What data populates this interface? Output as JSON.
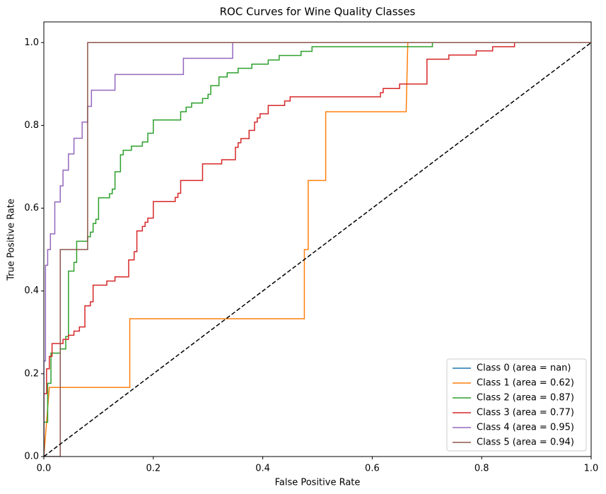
{
  "chart_data": {
    "type": "line",
    "title": "ROC Curves for Wine Quality Classes",
    "x_label": "False Positive Rate",
    "y_label": "True Positive Rate",
    "xlim": [
      0,
      1
    ],
    "ylim": [
      0,
      1.05
    ],
    "xticks": [
      {
        "value": 0,
        "label": "0.0"
      },
      0.2,
      0.4,
      0.6,
      0.8,
      {
        "value": 1,
        "label": "1.0"
      }
    ],
    "yticks": [
      {
        "value": 0,
        "label": "0.0"
      },
      0.2,
      0.4,
      0.6,
      0.8,
      {
        "value": 1,
        "label": "1.0"
      }
    ],
    "grid": false,
    "legend": "lower right",
    "reference_line": {
      "x": [
        0,
        1
      ],
      "values": [
        0,
        1
      ],
      "color": "#000000",
      "dashed": true
    },
    "series": [
      {
        "name": "Class 0 (area = nan)",
        "color": "#1f77b4",
        "x": [],
        "values": []
      },
      {
        "name": "Class 1 (area = 0.62)",
        "color": "#ff7f0e",
        "x": [
          0,
          0.01,
          0.157,
          0.157,
          0.476,
          0.476,
          0.483,
          0.483,
          0.515,
          0.515,
          0.662,
          0.665,
          1
        ],
        "values": [
          0,
          0.167,
          0.167,
          0.333,
          0.333,
          0.5,
          0.5,
          0.667,
          0.667,
          0.833,
          0.833,
          1,
          1
        ]
      },
      {
        "name": "Class 2 (area = 0.87)",
        "color": "#2ca02c",
        "x": [
          0,
          0,
          0.007,
          0.007,
          0.013,
          0.013,
          0.03,
          0.03,
          0.04,
          0.04,
          0.045,
          0.045,
          0.055,
          0.055,
          0.06,
          0.06,
          0.08,
          0.08,
          0.085,
          0.085,
          0.09,
          0.09,
          0.095,
          0.095,
          0.1,
          0.1,
          0.12,
          0.12,
          0.125,
          0.125,
          0.13,
          0.13,
          0.14,
          0.14,
          0.145,
          0.145,
          0.16,
          0.16,
          0.18,
          0.18,
          0.19,
          0.19,
          0.2,
          0.2,
          0.25,
          0.25,
          0.26,
          0.26,
          0.27,
          0.27,
          0.29,
          0.29,
          0.3,
          0.3,
          0.305,
          0.305,
          0.32,
          0.32,
          0.335,
          0.335,
          0.355,
          0.355,
          0.38,
          0.38,
          0.41,
          0.41,
          0.43,
          0.43,
          0.47,
          0.47,
          0.49,
          0.49,
          0.71,
          0.71,
          1
        ],
        "values": [
          0,
          0.083,
          0.083,
          0.177,
          0.177,
          0.25,
          0.25,
          0.26,
          0.26,
          0.29,
          0.29,
          0.448,
          0.448,
          0.469,
          0.469,
          0.52,
          0.52,
          0.531,
          0.531,
          0.542,
          0.542,
          0.563,
          0.563,
          0.573,
          0.573,
          0.625,
          0.625,
          0.635,
          0.635,
          0.646,
          0.646,
          0.688,
          0.688,
          0.729,
          0.729,
          0.74,
          0.74,
          0.75,
          0.75,
          0.76,
          0.76,
          0.781,
          0.781,
          0.813,
          0.813,
          0.833,
          0.833,
          0.844,
          0.844,
          0.854,
          0.854,
          0.865,
          0.865,
          0.875,
          0.875,
          0.896,
          0.896,
          0.917,
          0.917,
          0.927,
          0.927,
          0.938,
          0.938,
          0.948,
          0.948,
          0.958,
          0.958,
          0.969,
          0.969,
          0.979,
          0.979,
          0.99,
          0.99,
          1,
          1
        ]
      },
      {
        "name": "Class 3 (area = 0.77)",
        "color": "#d62728",
        "x": [
          0,
          0,
          0.005,
          0.005,
          0.01,
          0.01,
          0.015,
          0.015,
          0.035,
          0.035,
          0.045,
          0.045,
          0.055,
          0.055,
          0.065,
          0.065,
          0.075,
          0.075,
          0.085,
          0.085,
          0.09,
          0.09,
          0.115,
          0.115,
          0.13,
          0.13,
          0.155,
          0.155,
          0.165,
          0.165,
          0.17,
          0.17,
          0.18,
          0.18,
          0.185,
          0.185,
          0.19,
          0.19,
          0.2,
          0.2,
          0.24,
          0.24,
          0.245,
          0.245,
          0.25,
          0.25,
          0.29,
          0.29,
          0.325,
          0.325,
          0.35,
          0.35,
          0.355,
          0.355,
          0.36,
          0.36,
          0.375,
          0.375,
          0.385,
          0.385,
          0.39,
          0.39,
          0.395,
          0.395,
          0.41,
          0.41,
          0.44,
          0.44,
          0.45,
          0.45,
          0.615,
          0.615,
          0.62,
          0.62,
          0.65,
          0.65,
          0.7,
          0.7,
          0.74,
          0.74,
          0.79,
          0.79,
          0.82,
          0.82,
          0.86,
          0.86,
          1
        ],
        "values": [
          0,
          0.152,
          0.152,
          0.212,
          0.212,
          0.242,
          0.242,
          0.273,
          0.273,
          0.283,
          0.283,
          0.293,
          0.293,
          0.303,
          0.303,
          0.313,
          0.313,
          0.364,
          0.364,
          0.374,
          0.374,
          0.414,
          0.414,
          0.424,
          0.424,
          0.434,
          0.434,
          0.475,
          0.475,
          0.495,
          0.495,
          0.545,
          0.545,
          0.556,
          0.556,
          0.566,
          0.566,
          0.576,
          0.576,
          0.616,
          0.616,
          0.626,
          0.626,
          0.636,
          0.636,
          0.667,
          0.667,
          0.707,
          0.707,
          0.717,
          0.717,
          0.747,
          0.747,
          0.758,
          0.758,
          0.768,
          0.768,
          0.788,
          0.788,
          0.808,
          0.808,
          0.818,
          0.818,
          0.828,
          0.828,
          0.848,
          0.848,
          0.859,
          0.859,
          0.869,
          0.869,
          0.879,
          0.879,
          0.889,
          0.889,
          0.9,
          0.9,
          0.96,
          0.96,
          0.97,
          0.97,
          0.98,
          0.98,
          0.99,
          0.99,
          1,
          1
        ]
      },
      {
        "name": "Class 4 (area = 0.95)",
        "color": "#9467bd",
        "x": [
          0,
          0,
          0.003,
          0.003,
          0.007,
          0.007,
          0.012,
          0.012,
          0.02,
          0.02,
          0.03,
          0.03,
          0.035,
          0.035,
          0.045,
          0.045,
          0.055,
          0.055,
          0.07,
          0.07,
          0.08,
          0.08,
          0.087,
          0.087,
          0.13,
          0.13,
          0.255,
          0.255,
          0.345,
          0.345,
          1
        ],
        "values": [
          0,
          0.231,
          0.231,
          0.462,
          0.462,
          0.5,
          0.5,
          0.538,
          0.538,
          0.615,
          0.615,
          0.654,
          0.654,
          0.692,
          0.692,
          0.731,
          0.731,
          0.769,
          0.769,
          0.808,
          0.808,
          0.846,
          0.846,
          0.885,
          0.885,
          0.923,
          0.923,
          0.962,
          0.962,
          1,
          1
        ]
      },
      {
        "name": "Class 5 (area = 0.94)",
        "color": "#8c564b",
        "x": [
          0,
          0.03,
          0.03,
          0.08,
          0.08,
          1
        ],
        "values": [
          0,
          0,
          0.5,
          0.5,
          1,
          1
        ]
      }
    ]
  }
}
